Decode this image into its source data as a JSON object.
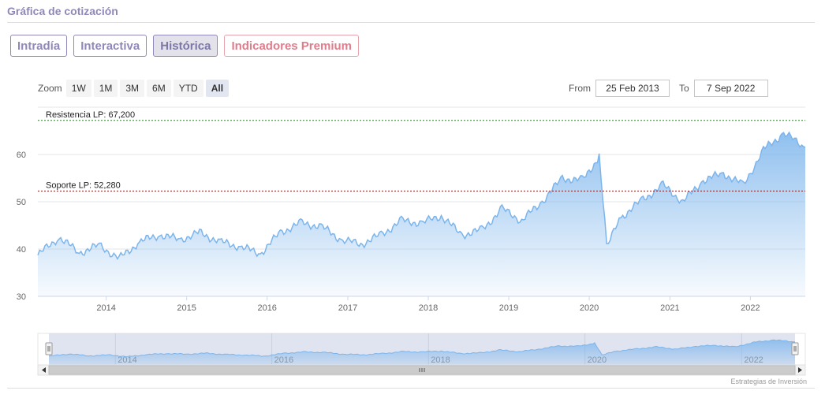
{
  "header": {
    "title": "Gráfica de cotización"
  },
  "tabs": [
    {
      "label": "Intradía",
      "active": false
    },
    {
      "label": "Interactiva",
      "active": false
    },
    {
      "label": "Histórica",
      "active": true
    },
    {
      "label": "Indicadores Premium",
      "active": false
    }
  ],
  "zoom": {
    "label": "Zoom",
    "buttons": [
      "1W",
      "1M",
      "3M",
      "6M",
      "YTD",
      "All"
    ],
    "selected": "All"
  },
  "range": {
    "from_label": "From",
    "from_value": "25 Feb 2013",
    "to_label": "To",
    "to_value": "7 Sep 2022"
  },
  "credit": "Estrategias de Inversión",
  "colors": {
    "line": "#7cb5ec",
    "resistance": "#2e7d32",
    "support": "#8b1a1a",
    "accent": "#8f88b8",
    "premium": "#e07c8b"
  },
  "chart_data": {
    "type": "area",
    "x": [
      "2013-02-25",
      "2013-06-01",
      "2013-09-01",
      "2013-12-01",
      "2014-03-01",
      "2014-06-01",
      "2014-09-01",
      "2014-12-01",
      "2015-03-01",
      "2015-06-01",
      "2015-09-01",
      "2015-12-01",
      "2016-03-01",
      "2016-06-01",
      "2016-09-01",
      "2016-12-01",
      "2017-03-01",
      "2017-06-01",
      "2017-09-01",
      "2017-12-01",
      "2018-03-01",
      "2018-06-01",
      "2018-09-01",
      "2018-12-01",
      "2019-03-01",
      "2019-06-01",
      "2019-09-01",
      "2019-12-01",
      "2020-02-15",
      "2020-03-20",
      "2020-06-01",
      "2020-09-01",
      "2020-12-01",
      "2021-03-01",
      "2021-06-01",
      "2021-09-01",
      "2021-12-01",
      "2022-03-01",
      "2022-06-01",
      "2022-09-07"
    ],
    "y": [
      38.7,
      42.5,
      39.2,
      40.8,
      38.0,
      41.5,
      43.0,
      42.0,
      43.5,
      41.5,
      40.5,
      39.0,
      43.5,
      45.5,
      44.8,
      42.0,
      41.0,
      43.0,
      46.0,
      45.5,
      47.0,
      43.0,
      44.0,
      48.5,
      46.0,
      50.0,
      55.0,
      54.5,
      59.5,
      41.0,
      47.0,
      50.5,
      53.5,
      50.0,
      54.5,
      56.0,
      53.5,
      61.0,
      64.5,
      61.5
    ],
    "yticks": [
      30,
      40,
      50,
      60
    ],
    "ylim": [
      30,
      70
    ],
    "xtick_labels": [
      "2014",
      "2015",
      "2016",
      "2017",
      "2018",
      "2019",
      "2020",
      "2021",
      "2022"
    ],
    "xlim": [
      "2013-02-25",
      "2022-09-07"
    ],
    "lines": [
      {
        "label": "Resistencia LP: 67,200",
        "value": 67.2
      },
      {
        "label": "Soporte LP: 52,280",
        "value": 52.28
      }
    ],
    "navigator_labels": [
      "2014",
      "2016",
      "2018",
      "2020",
      "2022"
    ],
    "grid": true,
    "legend": "none"
  }
}
